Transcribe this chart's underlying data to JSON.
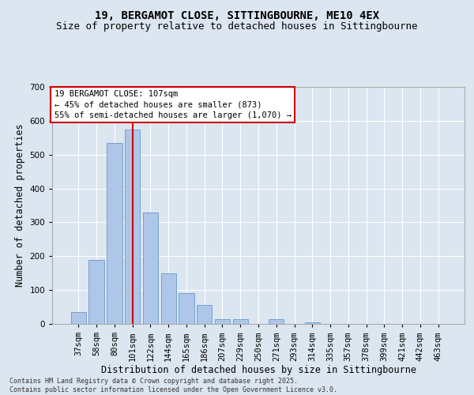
{
  "title_line1": "19, BERGAMOT CLOSE, SITTINGBOURNE, ME10 4EX",
  "title_line2": "Size of property relative to detached houses in Sittingbourne",
  "xlabel": "Distribution of detached houses by size in Sittingbourne",
  "ylabel": "Number of detached properties",
  "categories": [
    "37sqm",
    "58sqm",
    "80sqm",
    "101sqm",
    "122sqm",
    "144sqm",
    "165sqm",
    "186sqm",
    "207sqm",
    "229sqm",
    "250sqm",
    "271sqm",
    "293sqm",
    "314sqm",
    "335sqm",
    "357sqm",
    "378sqm",
    "399sqm",
    "421sqm",
    "442sqm",
    "463sqm"
  ],
  "values": [
    35,
    190,
    535,
    575,
    330,
    150,
    90,
    55,
    15,
    15,
    0,
    15,
    0,
    5,
    0,
    0,
    0,
    0,
    0,
    0,
    0
  ],
  "bar_color": "#aec6e8",
  "bar_edge_color": "#6699cc",
  "vline_x_index": 3,
  "vline_color": "#cc0000",
  "annotation_text": "19 BERGAMOT CLOSE: 107sqm\n← 45% of detached houses are smaller (873)\n55% of semi-detached houses are larger (1,070) →",
  "annotation_box_color": "#ffffff",
  "annotation_box_edge": "#cc0000",
  "ylim": [
    0,
    700
  ],
  "yticks": [
    0,
    100,
    200,
    300,
    400,
    500,
    600,
    700
  ],
  "background_color": "#dce6f0",
  "footer_text": "Contains HM Land Registry data © Crown copyright and database right 2025.\nContains public sector information licensed under the Open Government Licence v3.0.",
  "grid_color": "#ffffff",
  "title_fontsize": 10,
  "subtitle_fontsize": 9,
  "tick_fontsize": 7.5,
  "label_fontsize": 8.5,
  "annotation_fontsize": 7.5,
  "footer_fontsize": 6
}
